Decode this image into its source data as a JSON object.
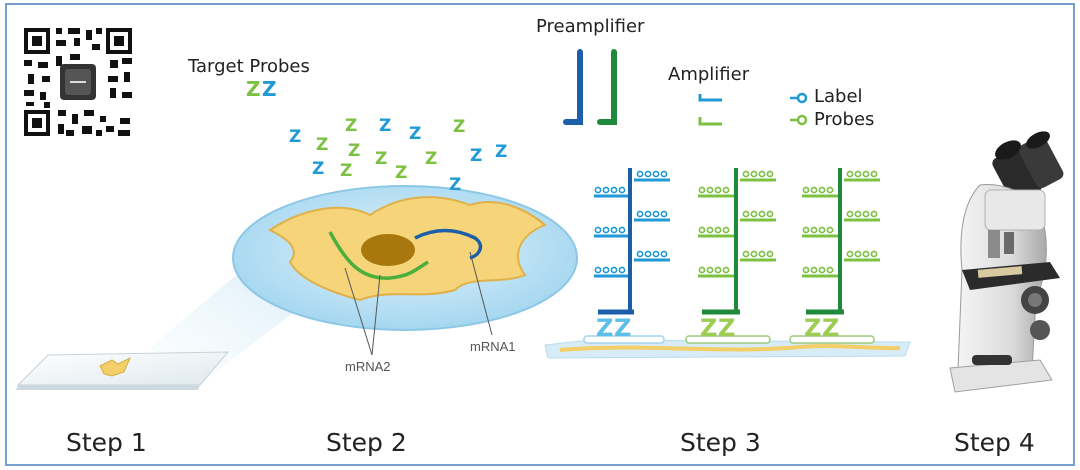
{
  "labels": {
    "target_probes": "Target Probes",
    "preamplifier": "Preamplifier",
    "amplifier": "Amplifier",
    "label": "Label",
    "probes": "Probes",
    "mrna1": "mRNA1",
    "mrna2": "mRNA2"
  },
  "steps": [
    "Step 1",
    "Step 2",
    "Step 3",
    "Step 4"
  ],
  "colors": {
    "frame": "#4a7fbf",
    "probe_blue": "#1f9ad6",
    "probe_green": "#7cc142",
    "preamp_dark_blue": "#1c5fa8",
    "preamp_dark_green": "#1f8a3c",
    "cell_fill": "#f6d57a",
    "nucleus": "#a8780f",
    "dish": "#bfe3f6"
  },
  "icons": {
    "qr": "qr-code-icon",
    "microscope": "microscope-icon"
  }
}
